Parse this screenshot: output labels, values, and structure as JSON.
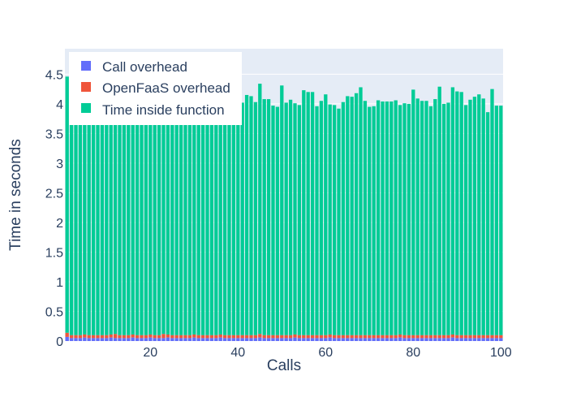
{
  "chart_data": {
    "type": "bar",
    "barmode": "stack",
    "xlabel": "Calls",
    "ylabel": "Time in seconds",
    "xlim": [
      0.5,
      100.5
    ],
    "ylim": [
      0,
      4.93
    ],
    "x_ticks": [
      20,
      40,
      60,
      80,
      100
    ],
    "y_ticks": [
      0,
      0.5,
      1,
      1.5,
      2,
      2.5,
      3,
      3.5,
      4,
      4.5
    ],
    "y_tick_labels": [
      "0",
      "0.5",
      "1",
      "1.5",
      "2",
      "2.5",
      "3",
      "3.5",
      "4",
      "4.5"
    ],
    "grid": true,
    "legend_position": "top-left",
    "x": [
      1,
      2,
      3,
      4,
      5,
      6,
      7,
      8,
      9,
      10,
      11,
      12,
      13,
      14,
      15,
      16,
      17,
      18,
      19,
      20,
      21,
      22,
      23,
      24,
      25,
      26,
      27,
      28,
      29,
      30,
      31,
      32,
      33,
      34,
      35,
      36,
      37,
      38,
      39,
      40,
      41,
      42,
      43,
      44,
      45,
      46,
      47,
      48,
      49,
      50,
      51,
      52,
      53,
      54,
      55,
      56,
      57,
      58,
      59,
      60,
      61,
      62,
      63,
      64,
      65,
      66,
      67,
      68,
      69,
      70,
      71,
      72,
      73,
      74,
      75,
      76,
      77,
      78,
      79,
      80,
      81,
      82,
      83,
      84,
      85,
      86,
      87,
      88,
      89,
      90,
      91,
      92,
      93,
      94,
      95,
      96,
      97,
      98,
      99,
      100
    ],
    "series": [
      {
        "name": "Call overhead",
        "color": "#636efa",
        "values": [
          0.07,
          0.05,
          0.05,
          0.05,
          0.06,
          0.05,
          0.05,
          0.05,
          0.05,
          0.05,
          0.06,
          0.05,
          0.05,
          0.05,
          0.05,
          0.06,
          0.05,
          0.05,
          0.05,
          0.06,
          0.05,
          0.05,
          0.05,
          0.06,
          0.05,
          0.05,
          0.05,
          0.05,
          0.05,
          0.06,
          0.05,
          0.05,
          0.05,
          0.05,
          0.05,
          0.06,
          0.05,
          0.05,
          0.05,
          0.05,
          0.05,
          0.05,
          0.05,
          0.05,
          0.06,
          0.05,
          0.05,
          0.05,
          0.05,
          0.05,
          0.05,
          0.05,
          0.06,
          0.05,
          0.05,
          0.05,
          0.05,
          0.05,
          0.05,
          0.05,
          0.06,
          0.05,
          0.05,
          0.05,
          0.05,
          0.05,
          0.05,
          0.05,
          0.05,
          0.05,
          0.05,
          0.05,
          0.05,
          0.05,
          0.05,
          0.05,
          0.06,
          0.05,
          0.05,
          0.05,
          0.05,
          0.05,
          0.05,
          0.05,
          0.05,
          0.05,
          0.05,
          0.05,
          0.06,
          0.05,
          0.05,
          0.05,
          0.05,
          0.05,
          0.05,
          0.05,
          0.05,
          0.05,
          0.05,
          0.05
        ]
      },
      {
        "name": "OpenFaaS overhead",
        "color": "#ef553b",
        "values": [
          0.07,
          0.05,
          0.05,
          0.05,
          0.05,
          0.05,
          0.05,
          0.05,
          0.05,
          0.05,
          0.05,
          0.07,
          0.05,
          0.05,
          0.05,
          0.05,
          0.05,
          0.05,
          0.05,
          0.05,
          0.05,
          0.05,
          0.07,
          0.05,
          0.05,
          0.05,
          0.05,
          0.05,
          0.05,
          0.05,
          0.05,
          0.05,
          0.05,
          0.05,
          0.05,
          0.05,
          0.05,
          0.05,
          0.05,
          0.05,
          0.05,
          0.05,
          0.05,
          0.05,
          0.06,
          0.05,
          0.05,
          0.05,
          0.05,
          0.05,
          0.05,
          0.05,
          0.05,
          0.05,
          0.05,
          0.05,
          0.05,
          0.05,
          0.05,
          0.05,
          0.05,
          0.05,
          0.05,
          0.05,
          0.05,
          0.05,
          0.05,
          0.05,
          0.05,
          0.05,
          0.05,
          0.05,
          0.05,
          0.05,
          0.05,
          0.05,
          0.05,
          0.05,
          0.05,
          0.05,
          0.05,
          0.05,
          0.05,
          0.05,
          0.05,
          0.05,
          0.05,
          0.05,
          0.05,
          0.05,
          0.05,
          0.05,
          0.05,
          0.05,
          0.05,
          0.05,
          0.05,
          0.05,
          0.05,
          0.05
        ]
      },
      {
        "name": "Time inside function",
        "color": "#00cc96",
        "values": [
          4.32,
          4.02,
          4.22,
          4.1,
          4.06,
          3.96,
          4.1,
          4.11,
          4.1,
          3.94,
          4.12,
          4.12,
          4.11,
          4.07,
          4.07,
          4.07,
          4.11,
          4.13,
          4.18,
          4.18,
          4.17,
          4.24,
          4.25,
          4.27,
          4.13,
          4.1,
          4.08,
          4.1,
          3.85,
          4.13,
          4.13,
          3.96,
          4.15,
          4.16,
          3.84,
          4.07,
          4.14,
          4.01,
          4.01,
          3.98,
          3.92,
          4.05,
          4.03,
          3.93,
          4.22,
          3.98,
          3.98,
          3.87,
          3.85,
          4.21,
          3.92,
          3.97,
          3.9,
          3.88,
          4.13,
          4.1,
          4.1,
          3.86,
          3.95,
          4.06,
          3.88,
          3.88,
          3.82,
          3.93,
          4.03,
          4.02,
          4.08,
          4.18,
          3.95,
          3.85,
          3.86,
          3.96,
          3.94,
          3.94,
          3.94,
          3.96,
          3.87,
          3.91,
          3.9,
          4.14,
          3.99,
          3.95,
          3.95,
          3.86,
          3.98,
          4.19,
          3.9,
          3.92,
          4.17,
          4.11,
          4.1,
          3.88,
          3.97,
          4.02,
          4.06,
          3.99,
          3.76,
          4.15,
          3.87,
          3.87
        ]
      }
    ]
  },
  "legend": {
    "items": [
      {
        "label": "Call overhead",
        "color": "#636efa"
      },
      {
        "label": "OpenFaaS overhead",
        "color": "#ef553b"
      },
      {
        "label": "Time inside function",
        "color": "#00cc96"
      }
    ]
  },
  "colors": {
    "plot_background": "#e5ecf6",
    "grid": "#ffffff",
    "text": "#2a3f5f"
  }
}
